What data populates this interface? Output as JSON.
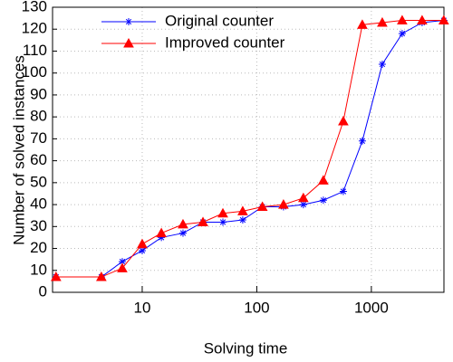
{
  "chart_data": {
    "type": "line",
    "xlabel": "Solving time",
    "ylabel": "Number of solved instances",
    "x": [
      1.77,
      4.4,
      6.7,
      10,
      14.7,
      22.7,
      33.9,
      50.6,
      75.4,
      112,
      171,
      255,
      381,
      569,
      834,
      1245,
      1858,
      2773,
      4285
    ],
    "series": [
      {
        "name": "Original counter",
        "color": "#0000ff",
        "marker": "asterisk",
        "values": [
          7,
          7,
          14,
          19,
          25,
          27,
          32,
          32,
          33,
          39,
          39,
          40,
          42,
          46,
          69,
          104,
          118,
          123,
          124
        ]
      },
      {
        "name": "Improved counter",
        "color": "#ff0000",
        "marker": "triangle",
        "values": [
          7,
          7,
          11,
          22,
          27,
          31,
          32,
          36,
          37,
          39,
          40,
          43,
          51,
          78,
          122,
          123,
          124,
          124,
          124
        ]
      }
    ],
    "xscale": "log",
    "xlim": [
      1.65,
      4300
    ],
    "xticks": [
      10,
      100,
      1000
    ],
    "ylim": [
      0,
      130
    ],
    "yticks": [
      0,
      10,
      20,
      30,
      40,
      50,
      60,
      70,
      80,
      90,
      100,
      110,
      120,
      130
    ],
    "grid": true,
    "legend": "upper left"
  }
}
